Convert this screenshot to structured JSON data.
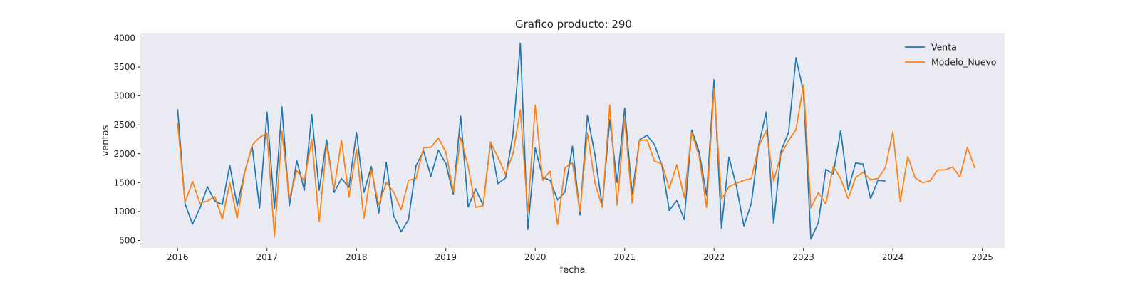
{
  "chart_data": {
    "type": "line",
    "title": "Grafico producto: 290",
    "xlabel": "fecha",
    "ylabel": "ventas",
    "x_start": "2016-01",
    "x_frequency": "monthly",
    "xlim": [
      "2015-08",
      "2025-04"
    ],
    "ylim": [
      370,
      4080
    ],
    "x_ticks": [
      "2016",
      "2017",
      "2018",
      "2019",
      "2020",
      "2021",
      "2022",
      "2023",
      "2024",
      "2025"
    ],
    "y_ticks": [
      500,
      1000,
      1500,
      2000,
      2500,
      3000,
      3500,
      4000
    ],
    "grid": false,
    "background": "#eaeaf2",
    "legend_position": "top-right",
    "series": [
      {
        "name": "Venta",
        "color": "#1f77b4",
        "values": [
          2770,
          1130,
          780,
          1060,
          1430,
          1180,
          1120,
          1800,
          1100,
          1680,
          2130,
          1060,
          2720,
          1050,
          2810,
          1100,
          1880,
          1370,
          2680,
          1370,
          2240,
          1330,
          1570,
          1420,
          2370,
          1330,
          1780,
          970,
          1850,
          930,
          650,
          860,
          1790,
          2050,
          1610,
          2060,
          1830,
          1300,
          2650,
          1080,
          1390,
          1110,
          2200,
          1480,
          1580,
          2310,
          3910,
          690,
          2100,
          1590,
          1540,
          1200,
          1340,
          2130,
          940,
          2660,
          1990,
          1090,
          2590,
          1500,
          2790,
          1300,
          2240,
          2320,
          2160,
          1800,
          1020,
          1190,
          860,
          2410,
          2030,
          1280,
          3280,
          710,
          1940,
          1440,
          750,
          1140,
          2150,
          2720,
          800,
          2050,
          2370,
          3660,
          3070,
          520,
          810,
          1730,
          1650,
          2400,
          1380,
          1840,
          1820,
          1220,
          1540,
          1530
        ],
        "start_index": 0
      },
      {
        "name": "Modelo_Nuevo",
        "color": "#ff7f0e",
        "values": [
          2530,
          1160,
          1520,
          1140,
          1180,
          1260,
          870,
          1500,
          880,
          1670,
          2150,
          2280,
          2360,
          570,
          2390,
          1220,
          1710,
          1530,
          2250,
          820,
          2150,
          1390,
          2230,
          1250,
          2080,
          880,
          1720,
          1110,
          1500,
          1340,
          1030,
          1540,
          1570,
          2100,
          2110,
          2270,
          2030,
          1350,
          2280,
          1780,
          1070,
          1100,
          2190,
          1940,
          1650,
          1990,
          2760,
          990,
          2840,
          1540,
          1700,
          770,
          1760,
          1840,
          1000,
          2360,
          1510,
          1070,
          2840,
          1110,
          2600,
          1150,
          2230,
          2240,
          1870,
          1830,
          1400,
          1810,
          1240,
          2370,
          1950,
          1070,
          3130,
          1210,
          1430,
          1490,
          1540,
          1570,
          2130,
          2400,
          1530,
          1990,
          2230,
          2420,
          3190,
          1060,
          1330,
          1130,
          1780,
          1570,
          1220,
          1590,
          1680,
          1550,
          1570,
          1760,
          2380,
          1170,
          1950,
          1580,
          1500,
          1530,
          1720,
          1720,
          1770,
          1600,
          2110,
          1750
        ],
        "start_index": 0
      }
    ]
  }
}
